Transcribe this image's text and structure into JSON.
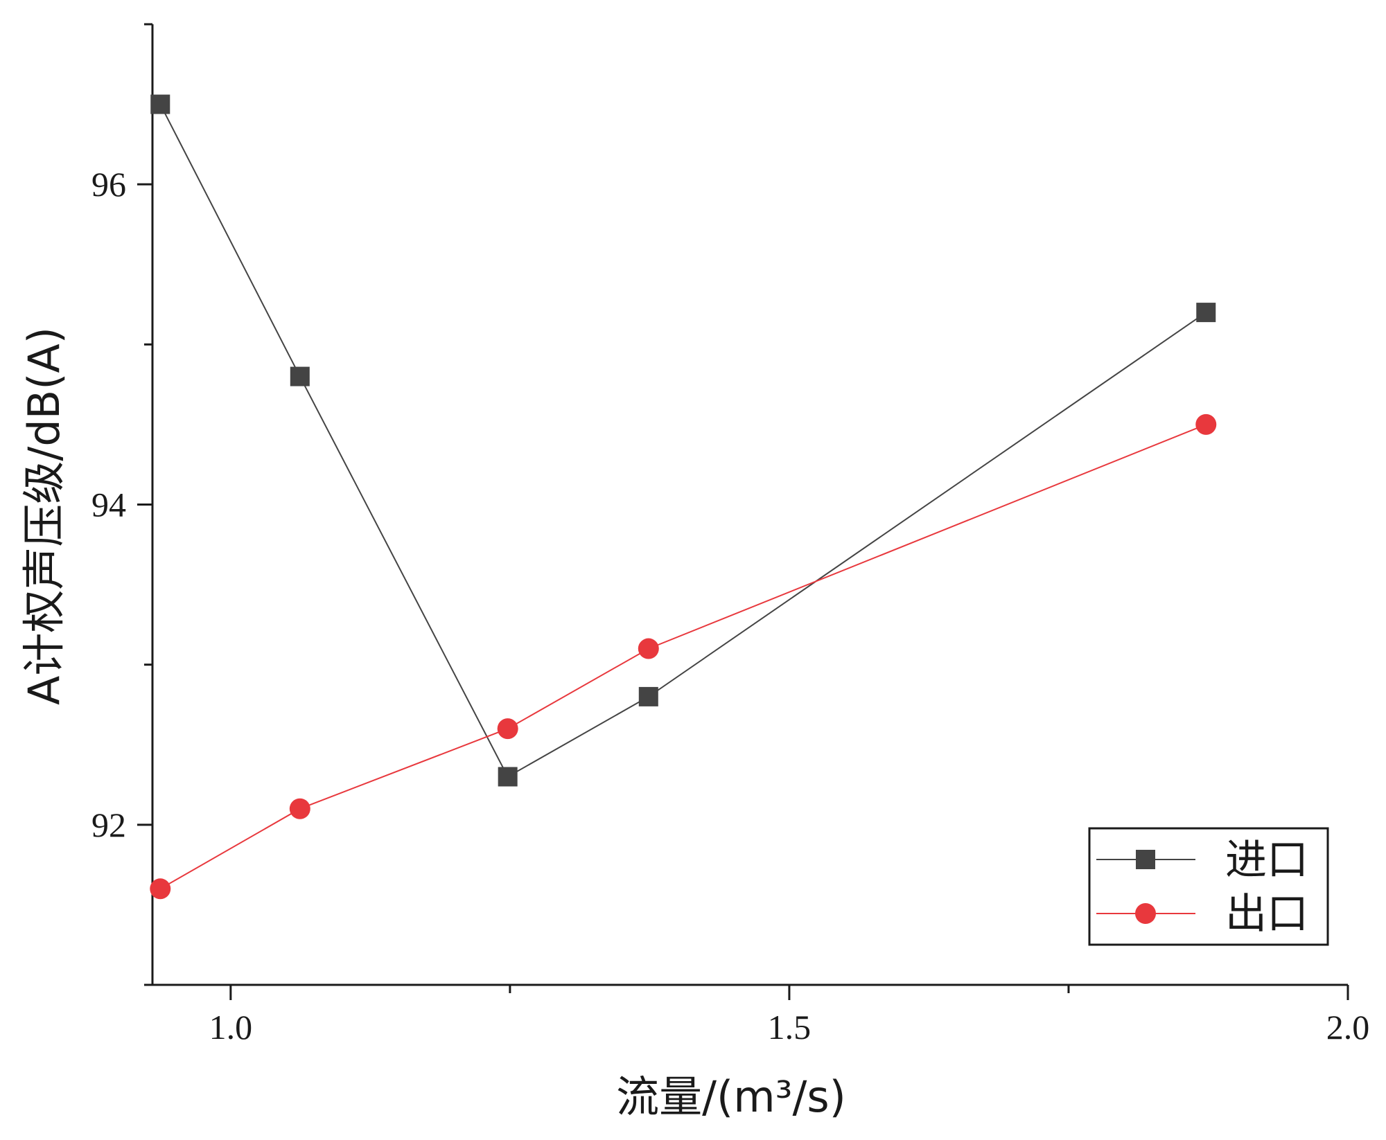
{
  "chart_data": {
    "type": "line",
    "title": "",
    "xlabel": "流量/(m³/s)",
    "ylabel": "A计权声压级/dB(A)",
    "xlim": [
      0.93,
      2.0
    ],
    "ylim": [
      91.0,
      97.0
    ],
    "x_major_ticks": [
      1.0,
      1.5,
      2.0
    ],
    "x_tick_labels": [
      "1.0",
      "1.5",
      "2.0"
    ],
    "x_minor_ticks": [
      1.25,
      1.75
    ],
    "y_major_ticks": [
      92,
      94,
      96
    ],
    "y_tick_labels": [
      "92",
      "94",
      "96"
    ],
    "y_minor_ticks": [
      91,
      93,
      95,
      97
    ],
    "grid": false,
    "legend_position": "bottom-right",
    "series": [
      {
        "name": "进口",
        "marker": "square",
        "color": "#444444",
        "x": [
          0.937,
          1.062,
          1.248,
          1.374,
          1.873
        ],
        "y": [
          96.5,
          94.8,
          92.3,
          92.8,
          95.2
        ]
      },
      {
        "name": "出口",
        "marker": "circle",
        "color": "#e8383d",
        "x": [
          0.937,
          1.062,
          1.248,
          1.374,
          1.873
        ],
        "y": [
          91.6,
          92.1,
          92.6,
          93.1,
          94.5
        ]
      }
    ]
  }
}
